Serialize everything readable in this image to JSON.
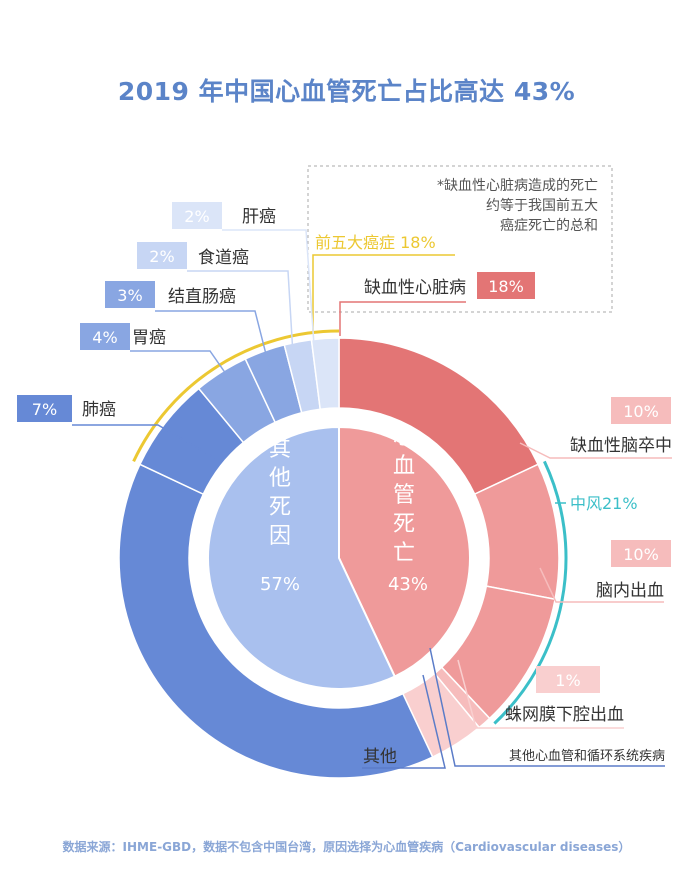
{
  "title": "2019 年中国心血管死亡占比高达 43%",
  "source": "数据来源：IHME-GBD，数据不包含中国台湾，原因选择为心血管疾病（Cardiovascular diseases）",
  "note": [
    "*缺血性心脏病造成的死亡",
    "约等于我国前五大",
    "癌症死亡的总和"
  ],
  "chart_data": {
    "type": "pie",
    "inner": [
      {
        "name": "心血管死亡",
        "value": 43,
        "label": "43%"
      },
      {
        "name": "其他死因",
        "value": 57,
        "label": "57%"
      }
    ],
    "outer": [
      {
        "name": "缺血性心脏病",
        "value": 18,
        "label": "18%"
      },
      {
        "name": "缺血性脑卒中",
        "value": 10,
        "label": "10%"
      },
      {
        "name": "脑内出血",
        "value": 10,
        "label": "10%"
      },
      {
        "name": "蛛网膜下腔出血",
        "value": 1,
        "label": "1%"
      },
      {
        "name": "其他心血管和循环系统疾病",
        "value": 4,
        "label": ""
      },
      {
        "name": "其他",
        "value": 39,
        "label": ""
      },
      {
        "name": "肺癌",
        "value": 7,
        "label": "7%"
      },
      {
        "name": "胃癌",
        "value": 4,
        "label": "4%"
      },
      {
        "name": "结直肠癌",
        "value": 3,
        "label": "3%"
      },
      {
        "name": "食道癌",
        "value": 2,
        "label": "2%"
      },
      {
        "name": "肝癌",
        "value": 2,
        "label": "2%"
      }
    ],
    "groups": [
      {
        "name": "前五大癌症 18%"
      },
      {
        "name": "中风21%"
      }
    ],
    "colors": {
      "cv_dark": "#e37575",
      "cv_mid": "#ef9a9a",
      "cv_light": "#f6bcbc",
      "cv_lighter": "#f9cfcf",
      "other_dark": "#6689d6",
      "other_mid": "#89a6e2",
      "other_inner": "#a9c0ee",
      "cancer_light": "#c7d6f4",
      "cancer_lighter": "#dbe5f8",
      "yellow": "#ecc832",
      "teal": "#3bbfc8"
    }
  }
}
